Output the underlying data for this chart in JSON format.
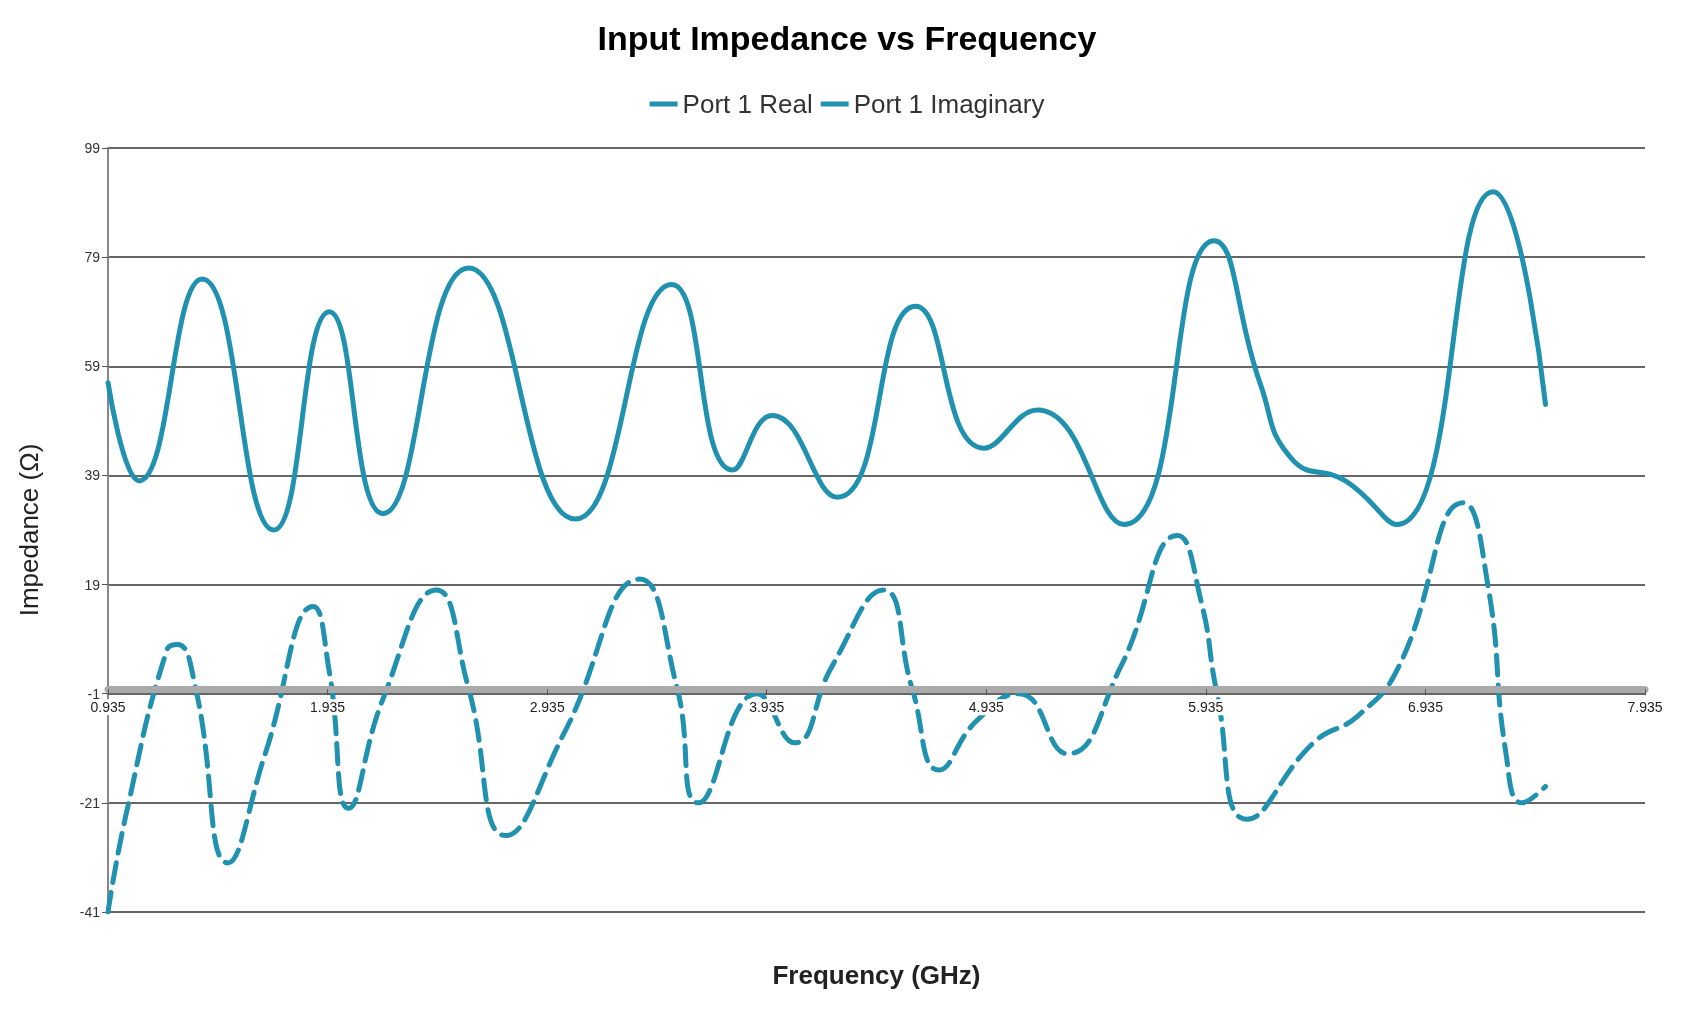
{
  "chart_data": {
    "type": "line",
    "title": "Input Impedance vs Frequency",
    "xlabel": "Frequency (GHz)",
    "ylabel": "Impedance (Ω)",
    "xlim": [
      0.935,
      7.935
    ],
    "xticks": [
      0.935,
      1.935,
      2.935,
      3.935,
      4.935,
      5.935,
      6.935,
      7.935
    ],
    "ylim": [
      -41,
      99
    ],
    "yticks": [
      -41,
      -21,
      -1,
      19,
      39,
      59,
      79,
      99
    ],
    "grid": "y",
    "legend": "top",
    "marker": "none",
    "series": [
      {
        "name": "Port 1 Real",
        "color": "#2191b0",
        "line_style": "solid",
        "x": [
          0.935,
          1.076,
          1.364,
          1.69,
          1.943,
          2.187,
          2.577,
          3.064,
          3.502,
          3.78,
          3.96,
          4.257,
          4.613,
          4.924,
          5.168,
          5.562,
          5.972,
          6.181,
          6.327,
          6.571,
          6.805,
          7.243,
          7.482
        ],
        "values": [
          56,
          38,
          75,
          29,
          69,
          32,
          77,
          31,
          74,
          40,
          50,
          35,
          70,
          44,
          51,
          30,
          82,
          56,
          42,
          38,
          30,
          91,
          52
        ]
      },
      {
        "name": "Port 1 Imaginary",
        "color": "#2191b0",
        "line_style": "dashed",
        "x": [
          0.935,
          1.018,
          1.203,
          1.252,
          1.334,
          1.481,
          1.651,
          1.87,
          1.943,
          2.031,
          2.187,
          2.43,
          2.577,
          2.747,
          3.015,
          3.356,
          3.527,
          3.624,
          3.891,
          4.062,
          4.232,
          4.466,
          4.597,
          4.72,
          4.89,
          5.085,
          5.304,
          5.548,
          5.806,
          5.913,
          5.986,
          6.123,
          6.425,
          6.629,
          6.814,
          7.107,
          7.219,
          7.302,
          7.375,
          7.482
        ],
        "values": [
          -41,
          -23,
          7,
          8,
          0,
          -32,
          -12,
          15,
          3,
          -22,
          -2,
          18,
          0,
          -27,
          -8,
          20,
          0,
          -21,
          -1,
          -10,
          4,
          18,
          0,
          -15,
          -6,
          -1,
          -12,
          4,
          28,
          16,
          -1,
          -24,
          -10,
          -5,
          4,
          34,
          19,
          -12,
          -21,
          -18
        ]
      }
    ]
  }
}
